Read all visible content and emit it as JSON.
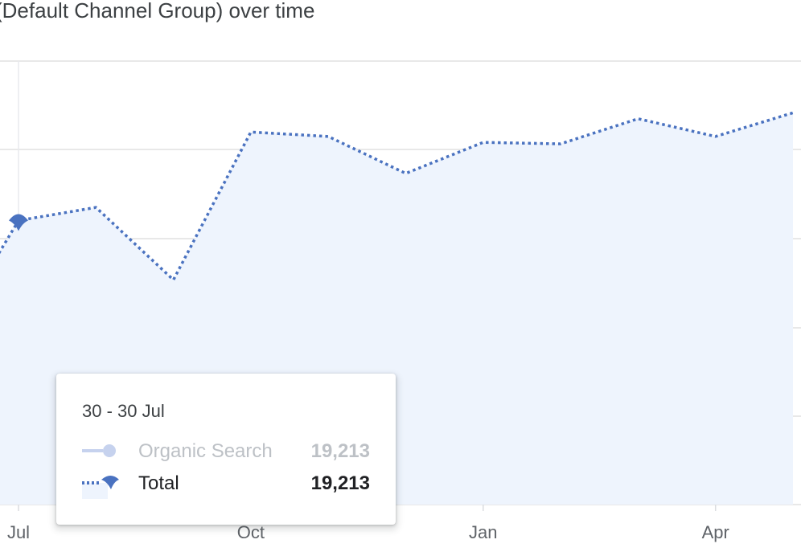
{
  "title": "(Default Channel Group) over time",
  "chart_data": {
    "type": "area",
    "x": [
      "Jul",
      "",
      "",
      "Oct",
      "",
      "",
      "Jan",
      "",
      "",
      "Apr",
      ""
    ],
    "xticks": [
      "Jul",
      "Oct",
      "Jan",
      "Apr"
    ],
    "series": [
      {
        "name": "Total",
        "values": [
          19213,
          20100,
          15200,
          25200,
          24900,
          22400,
          24500,
          24400,
          26100,
          24900,
          26500
        ],
        "color": "#4a72c0",
        "fill": "#eef4fd"
      }
    ],
    "grid": true,
    "legend": "none"
  },
  "tooltip": {
    "date": "30 - 30 Jul",
    "rows": [
      {
        "name": "Organic Search",
        "value": "19,213",
        "state": "inactive"
      },
      {
        "name": "Total",
        "value": "19,213",
        "state": "active"
      }
    ]
  },
  "colors": {
    "line": "#4a72c0",
    "area": "#eef4fd",
    "grid": "#e0e0e0",
    "inactive": "#bdc1c6"
  }
}
